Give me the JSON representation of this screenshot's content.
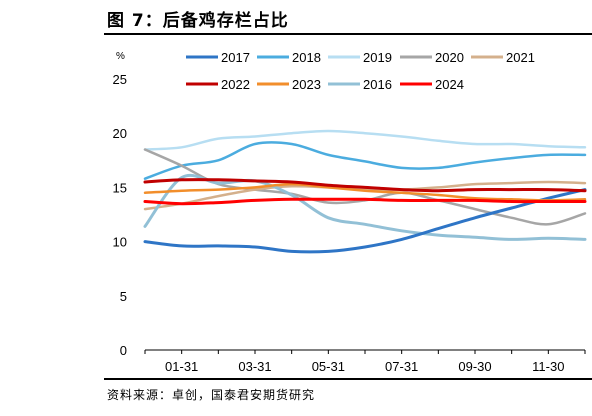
{
  "figure": {
    "title": "图 7：后备鸡存栏占比",
    "source": "资料来源：卓创，国泰君安期货研究"
  },
  "chart_data": {
    "type": "line",
    "title": "",
    "ylabel": "%",
    "xlabel": "",
    "ylim": [
      0,
      25
    ],
    "yticks": [
      0,
      5,
      10,
      15,
      20,
      25
    ],
    "xticklabels": [
      "01-31",
      "03-31",
      "05-31",
      "07-31",
      "09-30",
      "11-30"
    ],
    "x": [
      "01-01",
      "01-31",
      "03-01",
      "03-31",
      "05-01",
      "05-31",
      "07-01",
      "07-31",
      "08-31",
      "09-30",
      "10-31",
      "11-30",
      "12-31"
    ],
    "grid": false,
    "legend_position": "top",
    "series": [
      {
        "name": "2017",
        "color": "#2e75c6",
        "width": 3,
        "values": [
          10.0,
          9.6,
          9.6,
          9.5,
          9.1,
          9.1,
          9.5,
          10.2,
          11.2,
          12.2,
          13.1,
          14.0,
          14.8
        ]
      },
      {
        "name": "2018",
        "color": "#4bacdf",
        "width": 2.5,
        "values": [
          15.8,
          17.0,
          17.5,
          19.0,
          19.0,
          18.0,
          17.4,
          16.8,
          16.8,
          17.3,
          17.7,
          18.0,
          18.0
        ]
      },
      {
        "name": "2019",
        "color": "#b7def2",
        "width": 2.5,
        "values": [
          18.5,
          18.7,
          19.5,
          19.7,
          20.0,
          20.2,
          20.0,
          19.7,
          19.3,
          19.0,
          19.0,
          18.8,
          18.7
        ]
      },
      {
        "name": "2020",
        "color": "#a6a6a6",
        "width": 2.5,
        "values": [
          18.5,
          17.0,
          15.3,
          14.8,
          14.4,
          13.6,
          13.8,
          14.5,
          13.8,
          13.0,
          12.2,
          11.6,
          12.6
        ]
      },
      {
        "name": "2021",
        "color": "#d4b08c",
        "width": 2.5,
        "values": [
          13.0,
          13.5,
          14.2,
          14.8,
          15.1,
          15.0,
          14.8,
          14.8,
          15.0,
          15.3,
          15.4,
          15.5,
          15.4
        ]
      },
      {
        "name": "2022",
        "color": "#c00000",
        "width": 3,
        "values": [
          15.5,
          15.7,
          15.7,
          15.6,
          15.5,
          15.2,
          15.0,
          14.8,
          14.7,
          14.8,
          14.8,
          14.8,
          14.7
        ]
      },
      {
        "name": "2023",
        "color": "#f28e2b",
        "width": 2.5,
        "values": [
          14.5,
          14.7,
          14.8,
          15.0,
          15.3,
          15.0,
          14.7,
          14.5,
          14.3,
          14.0,
          13.9,
          13.8,
          13.9
        ]
      },
      {
        "name": "2016",
        "color": "#92c0d6",
        "width": 3,
        "values": [
          11.4,
          15.9,
          15.4,
          15.6,
          14.3,
          12.2,
          11.6,
          11.0,
          10.6,
          10.4,
          10.2,
          10.3,
          10.2
        ]
      },
      {
        "name": "2024",
        "color": "#ff0000",
        "width": 3,
        "values": [
          13.7,
          13.5,
          13.6,
          13.8,
          13.9,
          13.9,
          13.9,
          13.8,
          13.8,
          13.8,
          13.7,
          13.7,
          13.7
        ]
      }
    ]
  }
}
